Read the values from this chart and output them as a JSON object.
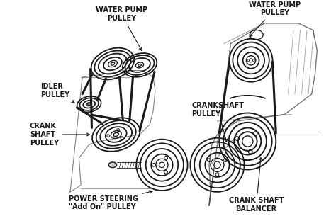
{
  "bg_color": "#ffffff",
  "lc": "#1a1a1a",
  "labels": {
    "water_pump_left": "WATER PUMP\nPULLEY",
    "water_pump_right": "WATER PUMP\nPULLEY",
    "idler_pulley": "IDLER\nPULLEY",
    "crank_shaft_left": "CRANK\nSHAFT\nPULLEY",
    "crankshaft_pulley": "CRANKSHAFT\nPULLEY",
    "crank_shaft_balancer": "CRANK SHAFT\nBALANCER",
    "power_steering": "POWER STEERING\n\"Add On\" PULLEY"
  },
  "fs": 7.0,
  "fw": "bold",
  "figsize": [
    4.74,
    3.05
  ],
  "dpi": 100
}
